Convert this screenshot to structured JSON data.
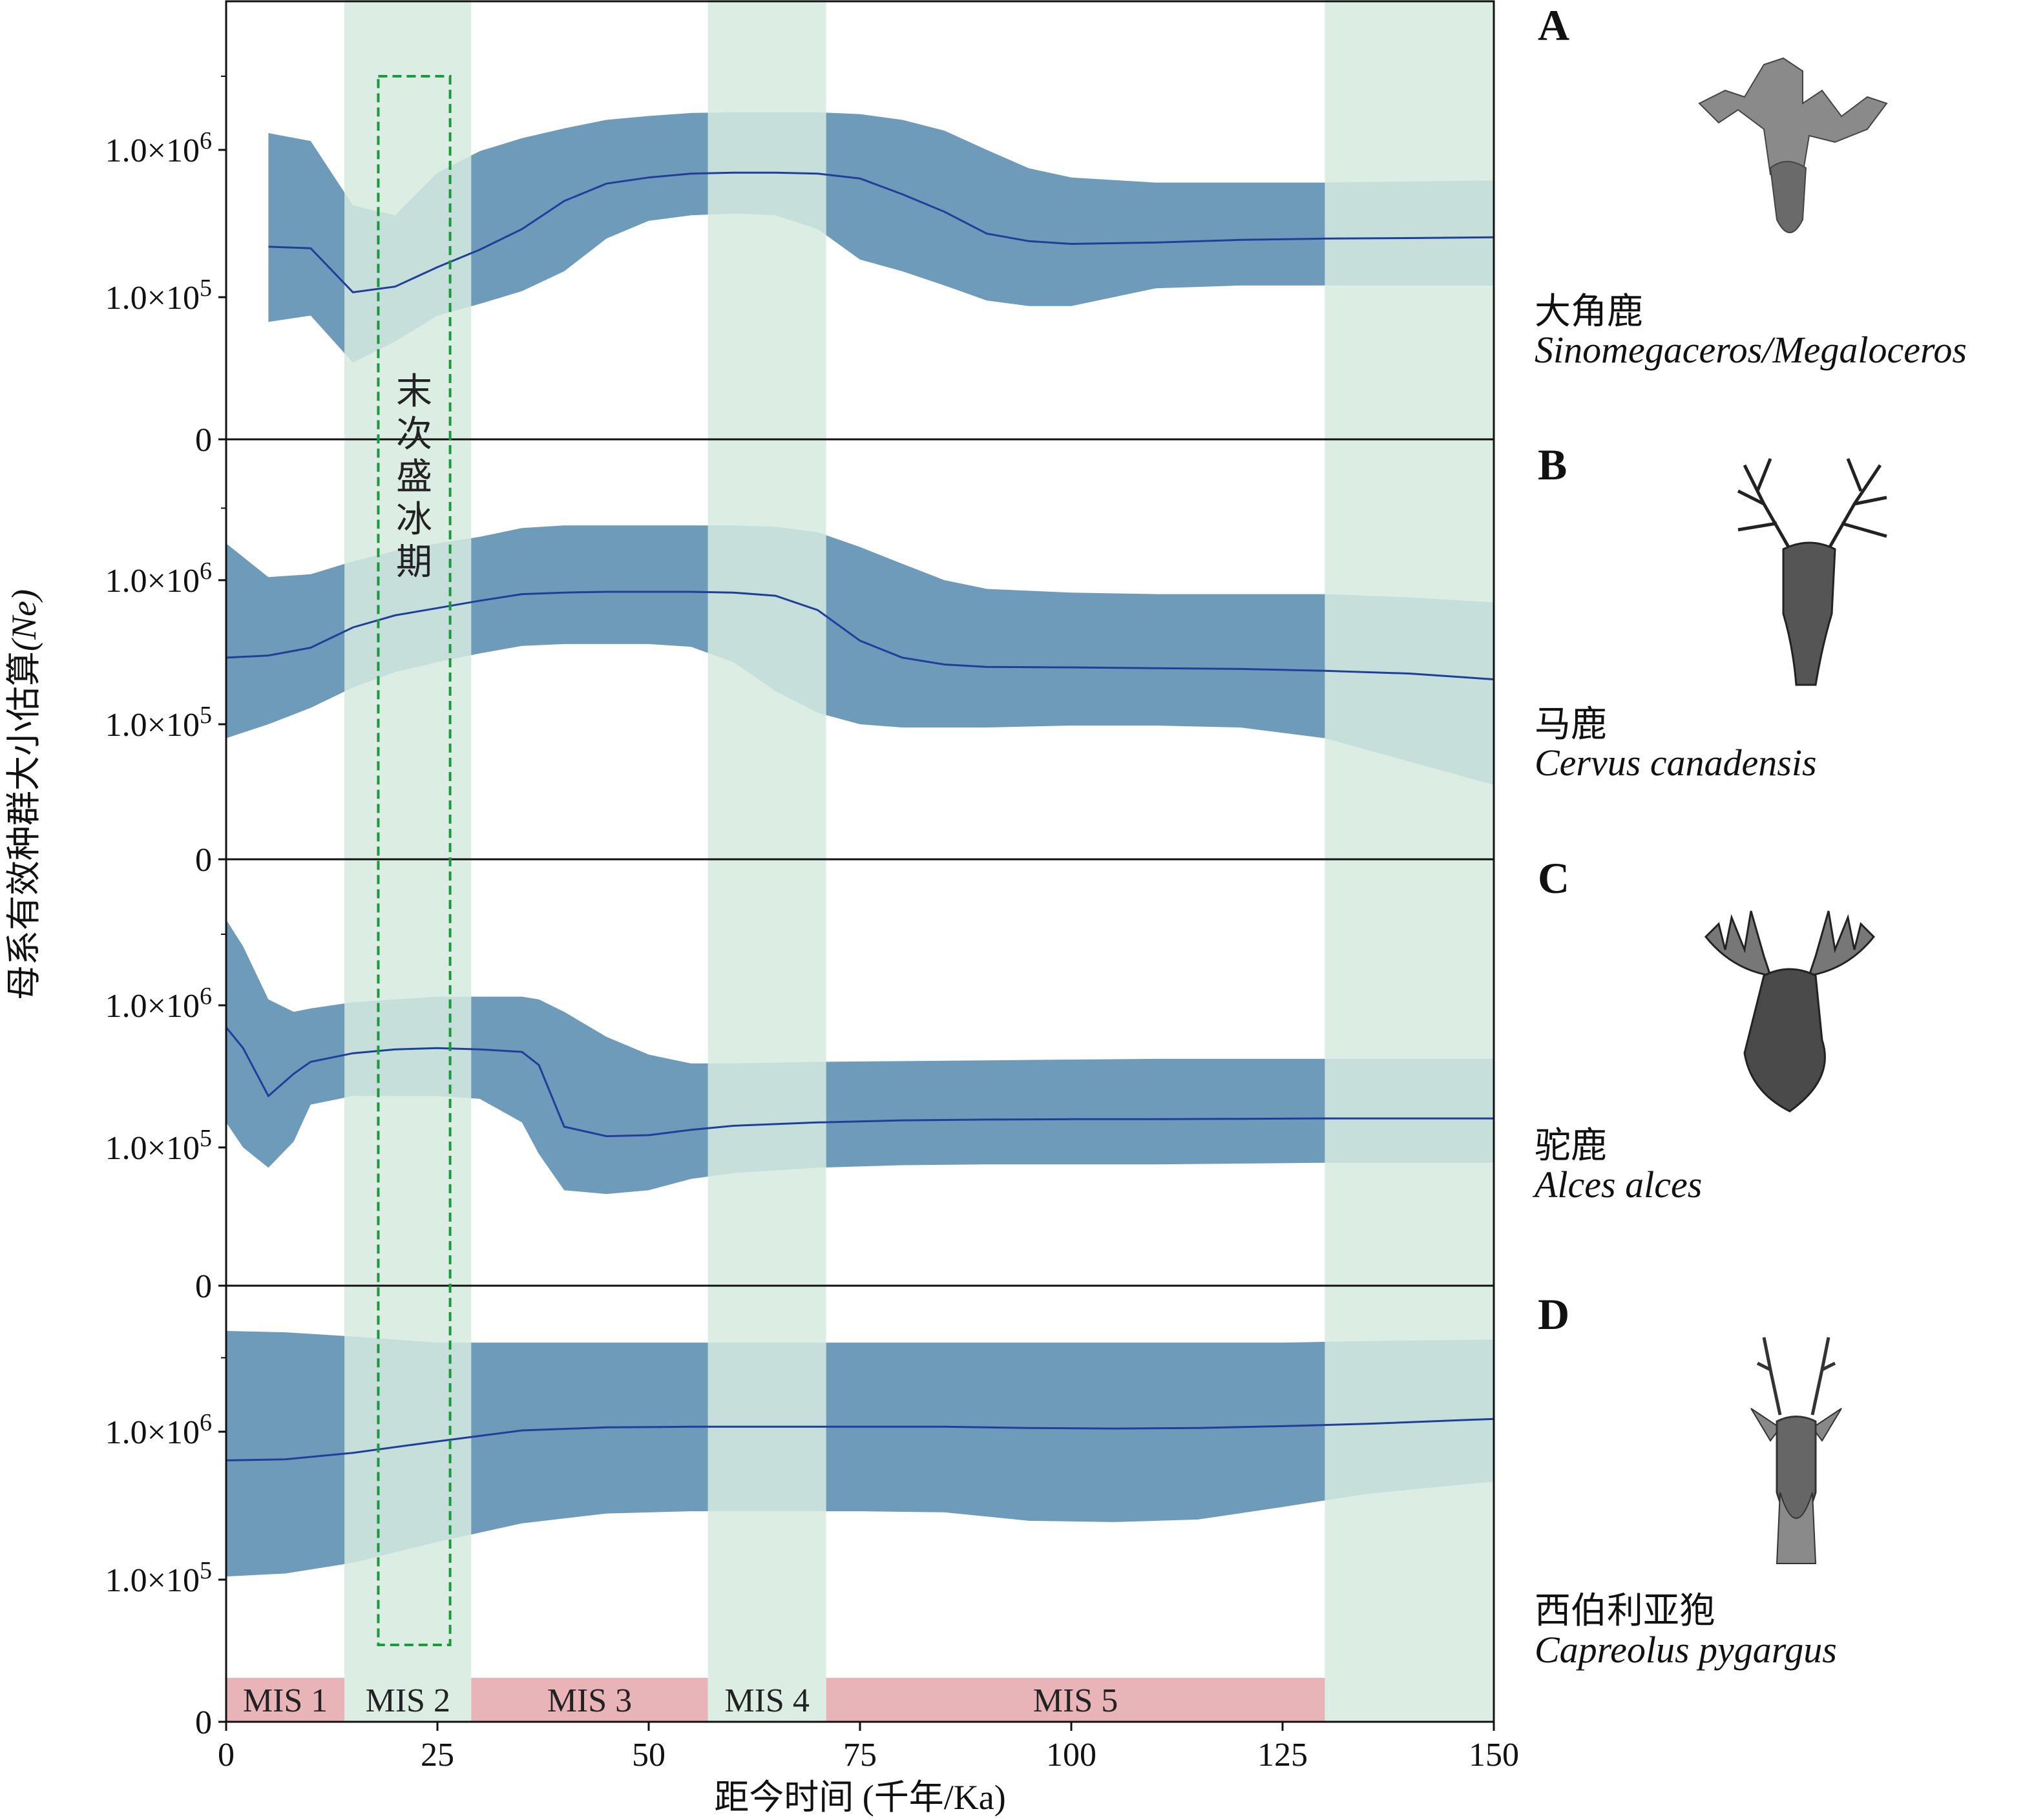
{
  "chart_data": [
    {
      "type": "line",
      "panel": "A",
      "x": [
        5,
        10,
        15,
        20,
        25,
        30,
        35,
        40,
        45,
        50,
        55,
        60,
        65,
        70,
        75,
        80,
        85,
        90,
        95,
        100,
        110,
        120,
        130,
        140,
        150
      ],
      "series": [
        {
          "role": "median",
          "values": [
            220000,
            215000,
            108000,
            118000,
            160000,
            210000,
            290000,
            450000,
            590000,
            650000,
            690000,
            700000,
            700000,
            690000,
            640000,
            500000,
            380000,
            270000,
            240000,
            230000,
            235000,
            245000,
            250000,
            252000,
            255000
          ]
        },
        {
          "role": "upper_95HPD",
          "values": [
            1300000,
            1150000,
            420000,
            360000,
            700000,
            980000,
            1200000,
            1400000,
            1600000,
            1700000,
            1780000,
            1800000,
            1800000,
            1800000,
            1750000,
            1600000,
            1350000,
            1000000,
            750000,
            650000,
            600000,
            600000,
            600000,
            610000,
            620000
          ]
        },
        {
          "role": "lower_95HPD",
          "values": [
            68000,
            75000,
            36000,
            50000,
            75000,
            90000,
            110000,
            150000,
            250000,
            330000,
            360000,
            370000,
            360000,
            290000,
            180000,
            150000,
            120000,
            95000,
            87000,
            87000,
            115000,
            120000,
            120000,
            120000,
            120000
          ]
        }
      ],
      "y_ticks": [
        "0",
        "1.0×10⁵",
        "1.0×10⁶"
      ]
    },
    {
      "type": "line",
      "panel": "B",
      "x": [
        0,
        5,
        10,
        15,
        20,
        25,
        30,
        35,
        40,
        45,
        50,
        55,
        60,
        65,
        70,
        75,
        80,
        85,
        90,
        100,
        110,
        120,
        130,
        140,
        150
      ],
      "series": [
        {
          "role": "median",
          "values": [
            290000,
            300000,
            340000,
            470000,
            570000,
            640000,
            720000,
            800000,
            820000,
            830000,
            830000,
            830000,
            820000,
            780000,
            620000,
            380000,
            290000,
            260000,
            250000,
            248000,
            245000,
            242000,
            235000,
            225000,
            205000
          ]
        },
        {
          "role": "upper_95HPD",
          "values": [
            1800000,
            1050000,
            1100000,
            1350000,
            1600000,
            1800000,
            2000000,
            2300000,
            2400000,
            2400000,
            2400000,
            2400000,
            2400000,
            2350000,
            2150000,
            1700000,
            1300000,
            1000000,
            870000,
            820000,
            800000,
            800000,
            800000,
            760000,
            700000
          ]
        },
        {
          "role": "lower_95HPD",
          "values": [
            80000,
            100000,
            130000,
            180000,
            230000,
            270000,
            310000,
            350000,
            360000,
            360000,
            360000,
            345000,
            270000,
            170000,
            120000,
            100000,
            95000,
            95000,
            95000,
            98000,
            98000,
            95000,
            80000,
            55000,
            38000
          ]
        }
      ],
      "y_ticks": [
        "0",
        "1.0×10⁵",
        "1.0×10⁶"
      ]
    },
    {
      "type": "line",
      "panel": "C",
      "x": [
        0,
        2,
        5,
        8,
        10,
        15,
        20,
        25,
        30,
        35,
        37,
        40,
        45,
        50,
        55,
        60,
        70,
        80,
        90,
        100,
        110,
        120,
        130,
        140,
        150
      ],
      "series": [
        {
          "role": "median",
          "values": [
            700000,
            500000,
            230000,
            330000,
            400000,
            460000,
            490000,
            500000,
            490000,
            470000,
            380000,
            140000,
            120000,
            122000,
            133000,
            142000,
            150000,
            155000,
            157000,
            158000,
            158000,
            159000,
            160000,
            160000,
            160000
          ]
        },
        {
          "role": "upper_95HPD",
          "values": [
            4000000,
            2600000,
            1100000,
            900000,
            950000,
            1050000,
            1100000,
            1150000,
            1150000,
            1150000,
            1100000,
            900000,
            600000,
            450000,
            390000,
            390000,
            400000,
            405000,
            410000,
            415000,
            420000,
            420000,
            420000,
            420000,
            420000
          ]
        },
        {
          "role": "lower_95HPD",
          "values": [
            150000,
            100000,
            72000,
            110000,
            200000,
            230000,
            230000,
            230000,
            220000,
            150000,
            90000,
            50000,
            47000,
            50000,
            60000,
            66000,
            72000,
            75000,
            76000,
            76000,
            76000,
            77000,
            78000,
            78000,
            78000
          ]
        }
      ],
      "y_ticks": [
        "0",
        "1.0×10⁵",
        "1.0×10⁶"
      ]
    },
    {
      "type": "line",
      "panel": "D",
      "x": [
        0,
        7,
        15,
        25,
        35,
        45,
        55,
        65,
        75,
        85,
        95,
        105,
        115,
        125,
        135,
        150
      ],
      "series": [
        {
          "role": "median",
          "values": [
            640000,
            650000,
            720000,
            860000,
            1020000,
            1070000,
            1080000,
            1080000,
            1080000,
            1080000,
            1060000,
            1050000,
            1060000,
            1090000,
            1130000,
            1220000
          ]
        },
        {
          "role": "upper_95HPD",
          "values": [
            4800000,
            4700000,
            4400000,
            4000000,
            4000000,
            4000000,
            4000000,
            4000000,
            4000000,
            4000000,
            4000000,
            4000000,
            4000000,
            4000000,
            4100000,
            4200000
          ]
        },
        {
          "role": "lower_95HPD",
          "values": [
            105000,
            110000,
            130000,
            180000,
            240000,
            280000,
            290000,
            290000,
            290000,
            285000,
            250000,
            245000,
            255000,
            310000,
            380000,
            460000
          ]
        }
      ],
      "y_ticks": [
        "0",
        "1.0×10⁵",
        "1.0×10⁶"
      ]
    }
  ],
  "x_axis": {
    "label": "距今时间 (千年/Ka)",
    "range": [
      0,
      150
    ],
    "ticks": [
      "0",
      "25",
      "50",
      "75",
      "100",
      "125",
      "150"
    ],
    "tick_values": [
      0,
      25,
      50,
      75,
      100,
      125,
      150
    ]
  },
  "y_axis": {
    "label_cn": "母系有效种群大小估算",
    "label_sym": "(Ne)",
    "scale": "log",
    "tick_values": [
      0,
      100000,
      1000000
    ]
  },
  "mis_stages": [
    {
      "label": "MIS 1",
      "start": 0,
      "end": 14,
      "shade": "pink"
    },
    {
      "label": "MIS 2",
      "start": 14,
      "end": 29,
      "shade": "green"
    },
    {
      "label": "MIS 3",
      "start": 29,
      "end": 57,
      "shade": "pink"
    },
    {
      "label": "MIS 4",
      "start": 57,
      "end": 71,
      "shade": "green"
    },
    {
      "label": "MIS 5",
      "start": 71,
      "end": 130,
      "shade": "pink"
    }
  ],
  "green_bands": [
    [
      14,
      29
    ],
    [
      57,
      71
    ],
    [
      130,
      150
    ]
  ],
  "lgm": {
    "label": "末次盛冰期",
    "start": 18,
    "end": 26.5
  },
  "species": [
    {
      "letter": "A",
      "cn": "大角鹿",
      "sci": "Sinomegaceros/Megaloceros",
      "illustration": "giant-deer-head-illustration"
    },
    {
      "letter": "B",
      "cn": "马鹿",
      "sci": "Cervus canadensis",
      "illustration": "red-deer-head-illustration"
    },
    {
      "letter": "C",
      "cn": "驼鹿",
      "sci": "Alces alces",
      "illustration": "moose-head-illustration"
    },
    {
      "letter": "D",
      "cn": "西伯利亚狍",
      "sci": "Capreolus pygargus",
      "illustration": "roe-deer-head-illustration"
    }
  ],
  "colors": {
    "band": "#6f9bbb",
    "median": "#1f3f9a",
    "green_period": "#d6ebdf",
    "mis_pink": "#e8b4b8",
    "lgm_box": "#1a9a3a"
  }
}
